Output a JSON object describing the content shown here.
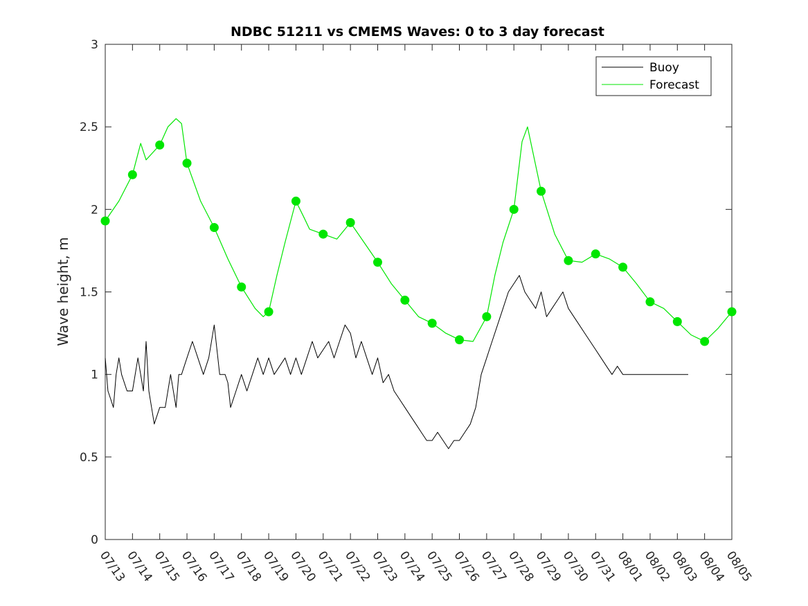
{
  "chart_data": {
    "type": "line",
    "title": "NDBC 51211 vs CMEMS Waves: 0 to 3 day forecast",
    "xlabel": "",
    "ylabel": "Wave height, m",
    "ylim": [
      0,
      3
    ],
    "yticks": [
      "0",
      "0.5",
      "1",
      "1.5",
      "2",
      "2.5",
      "3"
    ],
    "xticks": [
      "07/13",
      "07/14",
      "07/15",
      "07/16",
      "07/17",
      "07/18",
      "07/19",
      "07/20",
      "07/21",
      "07/22",
      "07/23",
      "07/24",
      "07/25",
      "07/26",
      "07/27",
      "07/28",
      "07/29",
      "07/30",
      "07/31",
      "08/01",
      "08/02",
      "08/03",
      "08/04",
      "08/05"
    ],
    "xlim": [
      "07/13",
      "08/05"
    ],
    "grid": false,
    "legend_position": "top-right",
    "legend": [
      "Buoy",
      "Forecast"
    ],
    "colors": {
      "buoy": "#000000",
      "forecast": "#00e600"
    },
    "series": [
      {
        "name": "Buoy",
        "x_days": [
          0,
          0.1,
          0.2,
          0.3,
          0.4,
          0.5,
          0.6,
          0.8,
          1.0,
          1.2,
          1.4,
          1.5,
          1.6,
          1.7,
          1.8,
          2.0,
          2.2,
          2.4,
          2.6,
          2.7,
          2.8,
          3.0,
          3.2,
          3.4,
          3.6,
          3.8,
          4.0,
          4.2,
          4.4,
          4.5,
          4.6,
          4.8,
          5.0,
          5.2,
          5.4,
          5.6,
          5.8,
          6.0,
          6.2,
          6.4,
          6.6,
          6.8,
          7.0,
          7.2,
          7.4,
          7.6,
          7.8,
          8.0,
          8.2,
          8.4,
          8.6,
          8.8,
          9.0,
          9.2,
          9.4,
          9.6,
          9.8,
          10.0,
          10.2,
          10.4,
          10.6,
          10.8,
          11.0,
          11.2,
          11.4,
          11.6,
          11.8,
          12.0,
          12.2,
          12.4,
          12.6,
          12.8,
          13.0,
          13.2,
          13.4,
          13.6,
          13.8,
          14.0,
          14.2,
          14.4,
          14.6,
          14.8,
          15.0,
          15.2,
          15.4,
          15.6,
          15.8,
          16.0,
          16.2,
          16.4,
          16.6,
          16.8,
          17.0,
          17.2,
          17.4,
          17.6,
          17.8,
          18.0,
          18.2,
          18.4,
          18.6,
          18.8,
          19.0,
          19.2,
          19.4,
          19.6,
          19.8,
          20.0,
          20.2,
          20.4,
          20.6,
          20.8,
          21.0,
          21.2,
          21.4
        ],
        "values": [
          1.1,
          0.9,
          0.85,
          0.8,
          1.0,
          1.1,
          1.0,
          0.9,
          0.9,
          1.1,
          0.9,
          1.2,
          0.9,
          0.8,
          0.7,
          0.8,
          0.8,
          1.0,
          0.8,
          1.0,
          1.0,
          1.1,
          1.2,
          1.1,
          1.0,
          1.1,
          1.3,
          1.0,
          1.0,
          0.95,
          0.8,
          0.9,
          1.0,
          0.9,
          1.0,
          1.1,
          1.0,
          1.1,
          1.0,
          1.05,
          1.1,
          1.0,
          1.1,
          1.0,
          1.1,
          1.2,
          1.1,
          1.15,
          1.2,
          1.1,
          1.2,
          1.3,
          1.25,
          1.1,
          1.2,
          1.1,
          1.0,
          1.1,
          0.95,
          1.0,
          0.9,
          0.85,
          0.8,
          0.75,
          0.7,
          0.65,
          0.6,
          0.6,
          0.65,
          0.6,
          0.55,
          0.6,
          0.6,
          0.65,
          0.7,
          0.8,
          1.0,
          1.1,
          1.2,
          1.3,
          1.4,
          1.5,
          1.55,
          1.6,
          1.5,
          1.45,
          1.4,
          1.5,
          1.35,
          1.4,
          1.45,
          1.5,
          1.4,
          1.35,
          1.3,
          1.25,
          1.2,
          1.15,
          1.1,
          1.05,
          1.0,
          1.05,
          1.0,
          1.0,
          1.0,
          1.0,
          1.0,
          1.0,
          1.0,
          1.0,
          1.0,
          1.0,
          1.0,
          1.0,
          1.0
        ]
      },
      {
        "name": "Forecast",
        "x_days": [
          0,
          0.5,
          1,
          1.3,
          1.5,
          2,
          2.3,
          2.6,
          2.8,
          3,
          3.5,
          4,
          4.5,
          5,
          5.5,
          5.8,
          6,
          6.3,
          6.6,
          7,
          7.3,
          7.5,
          8,
          8.5,
          9,
          9.5,
          10,
          10.5,
          11,
          11.5,
          12,
          12.5,
          13,
          13.5,
          14,
          14.3,
          14.6,
          15,
          15.3,
          15.5,
          16,
          16.5,
          17,
          17.5,
          18,
          18.5,
          19,
          19.5,
          20,
          20.5,
          21,
          21.5,
          22,
          22.5,
          23
        ],
        "values": [
          1.93,
          2.05,
          2.21,
          2.4,
          2.3,
          2.39,
          2.5,
          2.55,
          2.52,
          2.28,
          2.05,
          1.89,
          1.7,
          1.53,
          1.4,
          1.35,
          1.38,
          1.6,
          1.8,
          2.05,
          1.95,
          1.88,
          1.85,
          1.82,
          1.92,
          1.8,
          1.68,
          1.55,
          1.45,
          1.35,
          1.31,
          1.25,
          1.21,
          1.2,
          1.35,
          1.6,
          1.8,
          2.0,
          2.41,
          2.5,
          2.11,
          1.85,
          1.69,
          1.68,
          1.73,
          1.7,
          1.65,
          1.55,
          1.44,
          1.4,
          1.32,
          1.24,
          1.2,
          1.28,
          1.38
        ]
      }
    ]
  }
}
